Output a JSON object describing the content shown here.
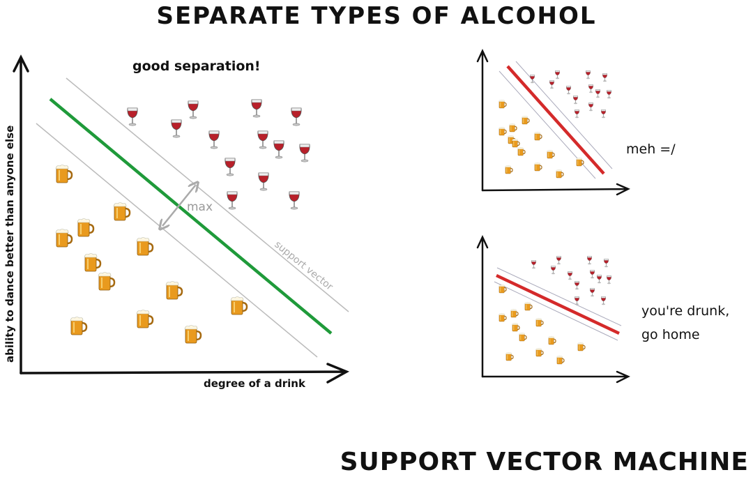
{
  "title": "SEPARATE TYPES OF ALCOHOL",
  "main_plot": {
    "annotation": "good separation!",
    "y_axis_label": "ability to dance better than anyone else",
    "x_axis_label": "degree of a drink",
    "margin_label": "max",
    "support_vector_label": "support vector"
  },
  "small_plots": [
    {
      "caption": [
        "meh =/"
      ]
    },
    {
      "caption": [
        "you're drunk,",
        "go home"
      ]
    }
  ],
  "footer": "SUPPORT VECTOR MACHINE"
}
